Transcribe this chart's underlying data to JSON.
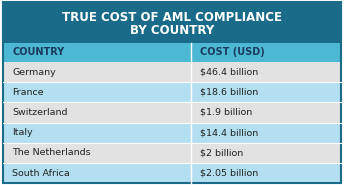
{
  "title_line1": "TRUE COST OF AML COMPLIANCE",
  "title_line2": "BY COUNTRY",
  "title_bg": "#1a6b8a",
  "title_text_color": "#ffffff",
  "header_bg": "#4db8d4",
  "header_text_color": "#1a3a5c",
  "col1_header": "COUNTRY",
  "col2_header": "COST (USD)",
  "rows": [
    [
      "Germany",
      "$46.4 billion"
    ],
    [
      "France",
      "$18.6 billion"
    ],
    [
      "Switzerland",
      "$1.9 billion"
    ],
    [
      "Italy",
      "$14.4 billion"
    ],
    [
      "The Netherlands",
      "$2 billion"
    ],
    [
      "South Africa",
      "$2.05 billion"
    ]
  ],
  "row_colors": [
    "#e2e2e2",
    "#b3dff0",
    "#e2e2e2",
    "#b3dff0",
    "#e2e2e2",
    "#b3dff0"
  ],
  "row_text_color": "#222222",
  "border_color": "#ffffff",
  "figsize": [
    3.44,
    1.85
  ],
  "dpi": 100
}
